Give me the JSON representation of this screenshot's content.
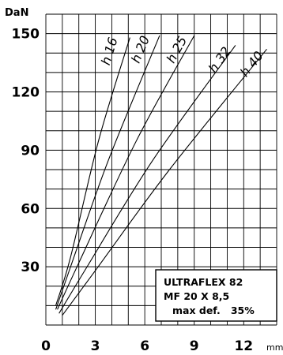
{
  "chart_data": {
    "type": "line",
    "ylabel": "DaN",
    "xlabel": "mm",
    "xlim": [
      0,
      14
    ],
    "ylim": [
      0,
      160
    ],
    "x_ticks": [
      0,
      3,
      6,
      9,
      12
    ],
    "y_ticks": [
      30,
      60,
      90,
      120,
      150
    ],
    "grid": true,
    "series": [
      {
        "name": "h 16",
        "points": [
          [
            0.6,
            10
          ],
          [
            1.5,
            35
          ],
          [
            3.2,
            95
          ],
          [
            5.1,
            148
          ]
        ]
      },
      {
        "name": "h 20",
        "points": [
          [
            0.6,
            8
          ],
          [
            1.5,
            30
          ],
          [
            3.8,
            85
          ],
          [
            6.9,
            149
          ]
        ]
      },
      {
        "name": "h 25",
        "points": [
          [
            0.7,
            8
          ],
          [
            2.0,
            32
          ],
          [
            5.5,
            95
          ],
          [
            9.0,
            149
          ]
        ]
      },
      {
        "name": "h 32",
        "points": [
          [
            0.8,
            6
          ],
          [
            2.5,
            30
          ],
          [
            6.5,
            85
          ],
          [
            11.5,
            144
          ]
        ]
      },
      {
        "name": "h 40",
        "points": [
          [
            1.0,
            5
          ],
          [
            3.0,
            28
          ],
          [
            7.5,
            80
          ],
          [
            13.4,
            142
          ]
        ]
      }
    ],
    "annotation": {
      "lines": [
        "ULTRAFLEX 82",
        "MF 20 X 8,5",
        "max def.   35%"
      ]
    }
  }
}
